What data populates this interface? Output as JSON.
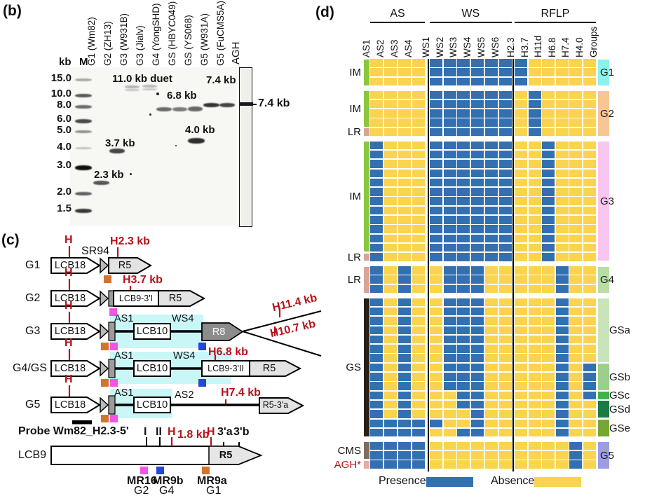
{
  "figure": {
    "panel_b": "(b)",
    "panel_c": "(c)",
    "panel_d": "(d)"
  },
  "gel": {
    "kb_label": "kb",
    "m_label": "M",
    "agh_label": "AGH",
    "lanes": [
      "G1 (Wm82)",
      "G2 (ZH13)",
      "G3 (W931B)",
      "G3 (Jialv)",
      "G4 (YongSHD)",
      "GS (HBYC049)",
      "GS (YS068)",
      "G5 (W931A)",
      "G5 (FuCMS5A)"
    ],
    "ladder_kb": [
      "15.0",
      "10.0",
      "8.0",
      "6.0",
      "5.0",
      "4.0",
      "3.0",
      "2.0",
      "1.5"
    ],
    "annotations": {
      "duet": "11.0 kb duet",
      "b68": "6.8 kb",
      "b74": "7.4 kb",
      "b40": "4.0 kb",
      "b37": "3.7 kb",
      "b23": "2.3 kb",
      "agh_band": "7.4 kb"
    }
  },
  "diagram": {
    "rows": {
      "g1": "G1",
      "g2": "G2",
      "g3": "G3",
      "g4": "G4/GS",
      "g5": "G5",
      "lcb9": "LCB9"
    },
    "labels": {
      "h": "H",
      "sr94": "SR94",
      "lcb18": "LCB18",
      "r5": "R5",
      "lcb9_3i": "LCB9-3'I",
      "lcb9_3ii": "LCB9-3'II",
      "lcb10": "LCB10",
      "r8": "R8",
      "r5_3a": "R5-3'a",
      "as1": "AS1",
      "as2": "AS2",
      "ws4": "WS4",
      "tick_i": "I",
      "tick_ii": "II",
      "a3": "3'a",
      "b3": "3'b",
      "r5_big": "R5"
    },
    "fragments": {
      "g1": "H2.3 kb",
      "g2": "H3.7 kb",
      "g3_up": "H11.4 kb",
      "g3_dn": "H10.7 kb",
      "g4": "H6.8 kb",
      "g5": "H7.4 kb",
      "lcb9_h": "1.8 kb"
    },
    "probe": "Probe Wm82_H2.3-5'",
    "markers": {
      "mr16": "MR16",
      "mr16_g": "G2",
      "mr9b": "MR9b",
      "mr9b_g": "G4",
      "mr9a": "MR9a",
      "mr9a_g": "G1"
    }
  },
  "heatmap": {
    "groups_header": "Groups",
    "presence_color": "#3370b2",
    "absence_color": "#fad34f",
    "legend": {
      "presence": "Presence",
      "absence": "Absence"
    },
    "col_groups": [
      {
        "label": "AS",
        "from": 0,
        "to": 3
      },
      {
        "label": "WS",
        "from": 4,
        "to": 9
      },
      {
        "label": "RFLP",
        "from": 10,
        "to": 15
      }
    ],
    "columns": [
      "AS1",
      "AS2",
      "AS3",
      "AS4",
      "WS1",
      "WS2",
      "WS3",
      "WS4",
      "WS5",
      "WS6",
      "H2.3",
      "H3.7",
      "H11d",
      "H6.8",
      "H7.4",
      "H4.0"
    ],
    "blocks": [
      {
        "name": "G1",
        "rows": [
          "0000111111100000",
          "0000111111100000",
          "0000111111100000"
        ],
        "side": [
          {
            "label": "IM",
            "color": "#8cc63f",
            "rows": 3
          }
        ],
        "groups": [
          {
            "label": "G1",
            "color": "#8df1ee",
            "rows": 3
          }
        ]
      },
      {
        "name": "G2",
        "rows": [
          "0000111111010000",
          "0000111111010000",
          "0000111111010000",
          "0000111111010000",
          "0000111111010000"
        ],
        "side": [
          {
            "label": "IM",
            "color": "#8cc63f",
            "rows": 4
          },
          {
            "label": "LR",
            "color": "#d9a39a",
            "rows": 1
          }
        ],
        "groups": [
          {
            "label": "G2",
            "color": "#f6c795",
            "rows": 5
          }
        ]
      },
      {
        "name": "G3",
        "rows": [
          "1000111111001000",
          "1000111111001000",
          "1000111111001000",
          "1000111111001000",
          "1000111111001000",
          "1000111111001000",
          "1000111111001000",
          "1000111111001000",
          "1000111111001000",
          "1000111111001000",
          "1000111111001000",
          "1000111111001000",
          "1000111111001000"
        ],
        "side": [
          {
            "label": "IM",
            "color": "#8cc63f",
            "rows": 12
          },
          {
            "label": "LR",
            "color": "#d9a39a",
            "rows": 1
          }
        ],
        "groups": [
          {
            "label": "G3",
            "color": "#f8c6ef",
            "rows": 13
          }
        ]
      },
      {
        "name": "G4",
        "rows": [
          "1010011100000100",
          "1010011100000100",
          "1010011100000100"
        ],
        "side": [
          {
            "label": "LR",
            "color": "#d9a39a",
            "rows": 3
          }
        ],
        "groups": [
          {
            "label": "G4",
            "color": "#b9dda4",
            "rows": 3
          }
        ]
      },
      {
        "name": "GS",
        "rows": [
          "1010011100000100",
          "1010011100000100",
          "1010011100000100",
          "1010011100000100",
          "1010011100000100",
          "1010011100000100",
          "1010011100000100",
          "1010011100000101",
          "1010011100000101",
          "1010011100000101",
          "1010001100000101",
          "1010001100000100",
          "1010000100000100",
          "1111100100000100",
          "1111001100000100"
        ],
        "side": [
          {
            "label": "GS",
            "color": "#262019",
            "rows": 15
          }
        ],
        "groups": [
          {
            "label": "GSa",
            "color": "#c9e4ba",
            "rows": 7,
            "offset": true
          },
          {
            "label": "GSb",
            "color": "#9ccf8e",
            "rows": 3,
            "offset": true
          },
          {
            "label": "GSc",
            "color": "#42b14b",
            "rows": 1,
            "offset": true
          },
          {
            "label": "GSd",
            "color": "#1a7b43",
            "rows": 2,
            "offset": true
          },
          {
            "label": "GSe",
            "color": "#77a733",
            "rows": 2,
            "offset": true
          }
        ]
      },
      {
        "name": "G5",
        "rows": [
          "1111000000000010",
          "1111000000000010",
          "1111000000000010"
        ],
        "side": [
          {
            "label": "CMS",
            "color": "#7c6e60",
            "rows": 2
          },
          {
            "label": "AGH*",
            "color": "#e5aca4",
            "rows": 1,
            "red": true
          }
        ],
        "groups": [
          {
            "label": "G5",
            "color": "#9d9de3",
            "rows": 3
          }
        ]
      }
    ]
  }
}
